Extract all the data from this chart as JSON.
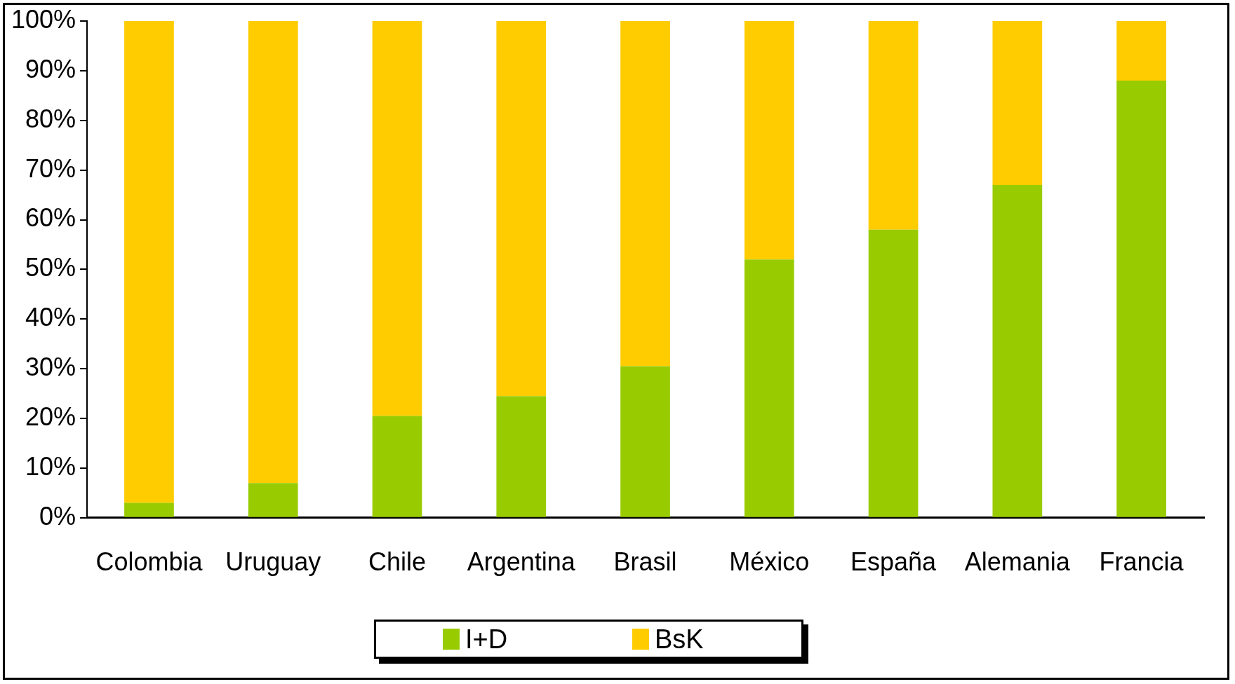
{
  "chart_data": {
    "type": "bar",
    "stacked": true,
    "categories": [
      "Colombia",
      "Uruguay",
      "Chile",
      "Argentina",
      "Brasil",
      "México",
      "España",
      "Alemania",
      "Francia"
    ],
    "series": [
      {
        "name": "I+D",
        "color": "#99cc00",
        "values": [
          3,
          7,
          20.5,
          24.5,
          30.5,
          52,
          58,
          67,
          88
        ]
      },
      {
        "name": "BsK",
        "color": "#ffcc00",
        "values": [
          97,
          93,
          79.5,
          75.5,
          69.5,
          48,
          42,
          33,
          12
        ]
      }
    ],
    "ylim": [
      0,
      100
    ],
    "yticks": [
      {
        "value": 0,
        "label": "0%"
      },
      {
        "value": 10,
        "label": "10%"
      },
      {
        "value": 20,
        "label": "20%"
      },
      {
        "value": 30,
        "label": "30%"
      },
      {
        "value": 40,
        "label": "40%"
      },
      {
        "value": 50,
        "label": "50%"
      },
      {
        "value": 60,
        "label": "60%"
      },
      {
        "value": 70,
        "label": "70%"
      },
      {
        "value": 80,
        "label": "80%"
      },
      {
        "value": 90,
        "label": "90%"
      },
      {
        "value": 100,
        "label": "100%"
      }
    ],
    "grid": false,
    "legend": "bottom"
  }
}
